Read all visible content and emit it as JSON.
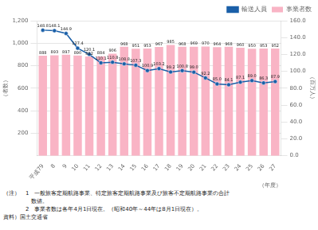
{
  "chart_data": {
    "type": "bar",
    "categories": [
      "平成79",
      "8",
      "9",
      "10",
      "11",
      "12",
      "13",
      "14",
      "15",
      "16",
      "17",
      "18",
      "19",
      "20",
      "21",
      "22",
      "23",
      "24",
      "25",
      "26",
      "27"
    ],
    "xlabel": "（年度）",
    "ylabel": "（者数）",
    "y2label": "（百万人）",
    "series": [
      {
        "name": "事業者数",
        "type": "bar",
        "color": "#f9b4c5",
        "values": [
          888,
          893,
          897,
          890,
          882,
          884,
          906,
          968,
          951,
          953,
          967,
          985,
          968,
          969,
          970,
          964,
          968,
          960,
          950,
          953,
          952
        ]
      },
      {
        "name": "輸送人員",
        "type": "line",
        "axis": "y2",
        "color": "#1a5fa8",
        "marker": "circle",
        "values": [
          148.8,
          148.1,
          144.9,
          127.4,
          120.1,
          110.1,
          110.8,
          108.8,
          107.3,
          100.9,
          103.2,
          99.2,
          100.8,
          99.0,
          92.2,
          85.0,
          84.1,
          87.1,
          89.0,
          86.3,
          87.9
        ],
        "value_labels": [
          "148.8",
          "148.1",
          "144.9",
          "127.4",
          "120.1",
          "110.1",
          "110.8",
          "108.8",
          "107.3",
          "100.9",
          "103.2",
          "99.2",
          "100.8",
          "99.0",
          "92.2",
          "85.0",
          "84.1",
          "87.1",
          "89.0",
          "86.3",
          "87.9"
        ]
      }
    ],
    "ylim": [
      0,
      1200
    ],
    "yticks": [
      200,
      400,
      600,
      800,
      {
        "value": 1000,
        "label": "1,000"
      },
      {
        "value": 1200,
        "label": "1,200"
      }
    ],
    "y2lim": [
      0.0,
      160.0
    ],
    "y2ticks": [
      {
        "value": 0,
        "label": "0.0"
      },
      {
        "value": 20,
        "label": "20.0"
      },
      {
        "value": 40,
        "label": "40.0"
      },
      {
        "value": 60,
        "label": "60.0"
      },
      {
        "value": 80,
        "label": "80.0"
      },
      {
        "value": 100,
        "label": "100.0"
      },
      {
        "value": 120,
        "label": "120.0"
      },
      {
        "value": 140,
        "label": "140.0"
      },
      {
        "value": 160,
        "label": "160.0"
      }
    ],
    "grid": true,
    "legend": "upper right",
    "data_labels": true,
    "annotations": [
      "（注）　1　一般旅客定期航路事業、特定旅客定期航路事業及び旅客不定期航路事業の合計",
      "　　　　　数値。",
      "　　　　2　事業者数は各年4月1日現在。（昭和40年～44年は8月1日現在）。",
      "資料）国土交通省"
    ]
  }
}
